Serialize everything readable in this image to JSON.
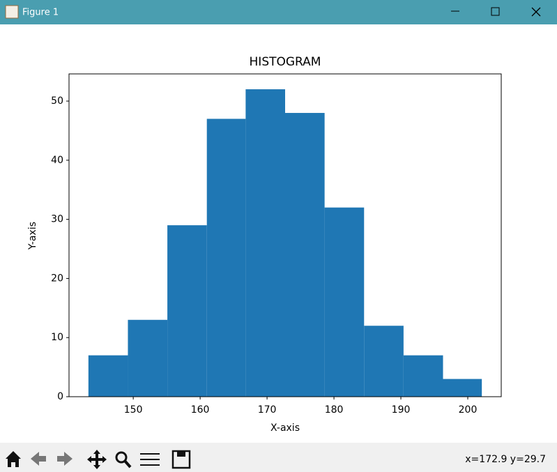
{
  "window": {
    "title": "Figure 1",
    "status": "x=172.9 y=29.7"
  },
  "chart_data": {
    "type": "histogram",
    "title": "HISTOGRAM",
    "x_label": "X-axis",
    "y_label": "Y-axis",
    "bins": [
      143.3,
      149.2,
      155.1,
      161.0,
      166.8,
      172.7,
      178.6,
      184.5,
      190.4,
      196.3,
      202.1
    ],
    "counts": [
      7,
      13,
      29,
      47,
      52,
      48,
      32,
      12,
      7,
      3
    ],
    "color": "#1f77b4",
    "xlim": [
      140.4,
      205.0
    ],
    "xticks": [
      150,
      160,
      170,
      180,
      190,
      200
    ],
    "ylim": [
      0,
      54.6
    ],
    "yticks": [
      0,
      10,
      20,
      30,
      40,
      50
    ],
    "grid": false
  }
}
